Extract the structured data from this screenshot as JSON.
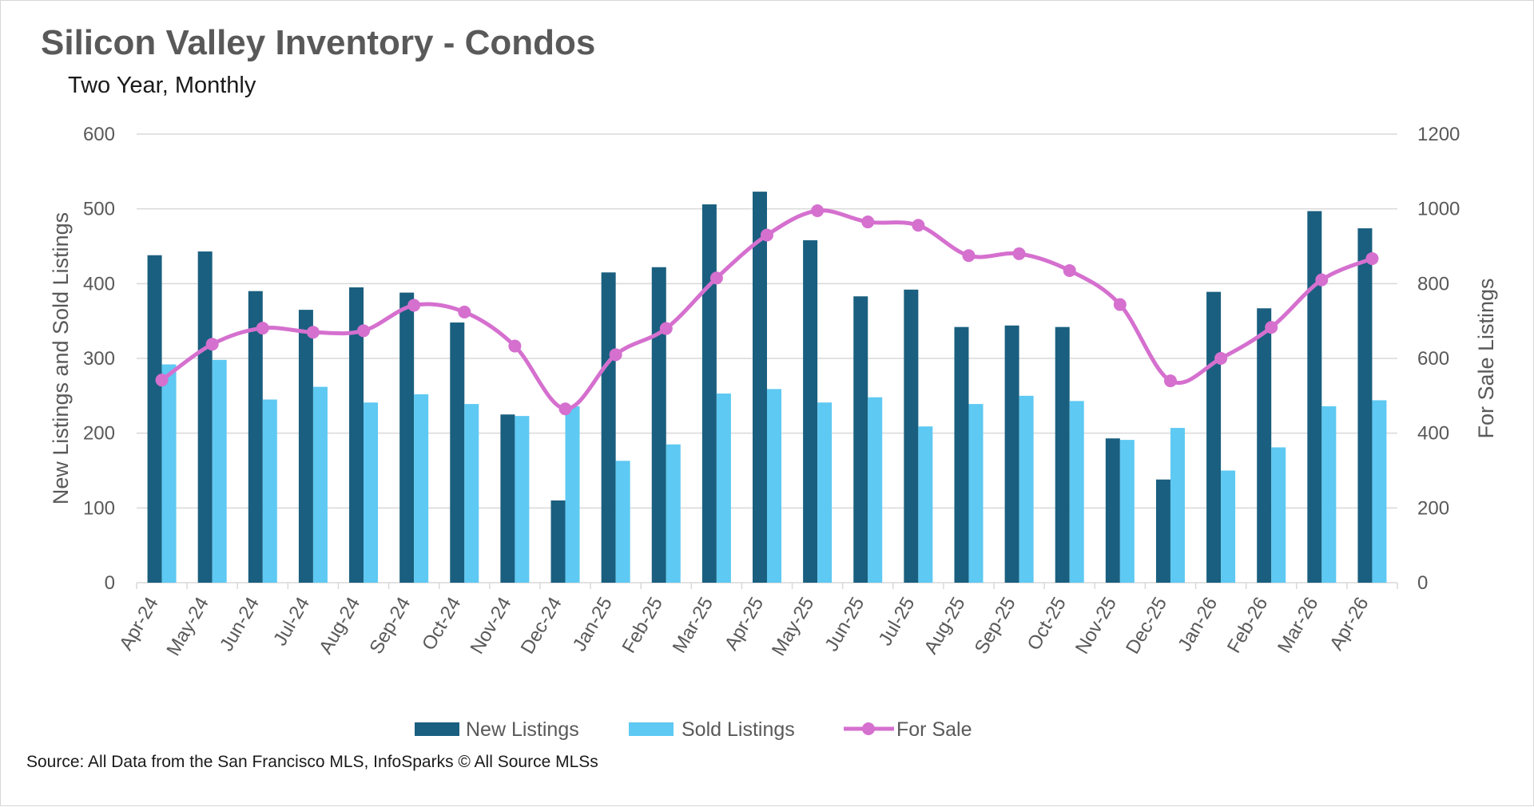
{
  "title": "Silicon Valley Inventory - Condos",
  "subtitle": "Two Year, Monthly",
  "source": "Source: All Data from the San Francisco MLS, InfoSparks © All Source MLSs",
  "colors": {
    "new_listings": "#1a5f7f",
    "sold_listings": "#5ec9f2",
    "for_sale": "#d570cf",
    "grid": "#d9d9d9",
    "text": "#595959"
  },
  "chart_data": {
    "type": "bar",
    "categories": [
      "Apr-24",
      "May-24",
      "Jun-24",
      "Jul-24",
      "Aug-24",
      "Sep-24",
      "Oct-24",
      "Nov-24",
      "Dec-24",
      "Jan-25",
      "Feb-25",
      "Mar-25",
      "Apr-25",
      "May-25",
      "Jun-25",
      "Jul-25",
      "Aug-25",
      "Sep-25",
      "Oct-25",
      "Nov-25",
      "Dec-25",
      "Jan-26",
      "Feb-26",
      "Mar-26",
      "Apr-26"
    ],
    "series": [
      {
        "name": "New Listings",
        "type": "bar",
        "axis": "left",
        "values": [
          438,
          443,
          390,
          365,
          395,
          388,
          348,
          225,
          110,
          415,
          422,
          506,
          523,
          458,
          383,
          392,
          342,
          344,
          342,
          193,
          138,
          389,
          367,
          497,
          474
        ]
      },
      {
        "name": "Sold Listings",
        "type": "bar",
        "axis": "left",
        "values": [
          292,
          298,
          245,
          262,
          241,
          252,
          239,
          223,
          236,
          163,
          185,
          253,
          259,
          241,
          248,
          209,
          239,
          250,
          243,
          191,
          207,
          150,
          181,
          236,
          244
        ]
      },
      {
        "name": "For Sale",
        "type": "line",
        "axis": "right",
        "values": [
          542,
          638,
          681,
          670,
          674,
          742,
          724,
          633,
          465,
          610,
          680,
          815,
          930,
          995,
          965,
          956,
          875,
          880,
          835,
          744,
          540,
          600,
          683,
          810,
          867
        ]
      }
    ],
    "ylabel": "New Listings and Sold Listings",
    "y2label": "For Sale Listings",
    "ylim": [
      0,
      600
    ],
    "y_ticks": [
      "0",
      "100",
      "200",
      "300",
      "400",
      "500",
      "600"
    ],
    "y2lim": [
      0,
      1200
    ],
    "y2_ticks": [
      "0",
      "200",
      "400",
      "600",
      "800",
      "1000",
      "1200"
    ],
    "grid": true,
    "legend": "bottom-center"
  }
}
